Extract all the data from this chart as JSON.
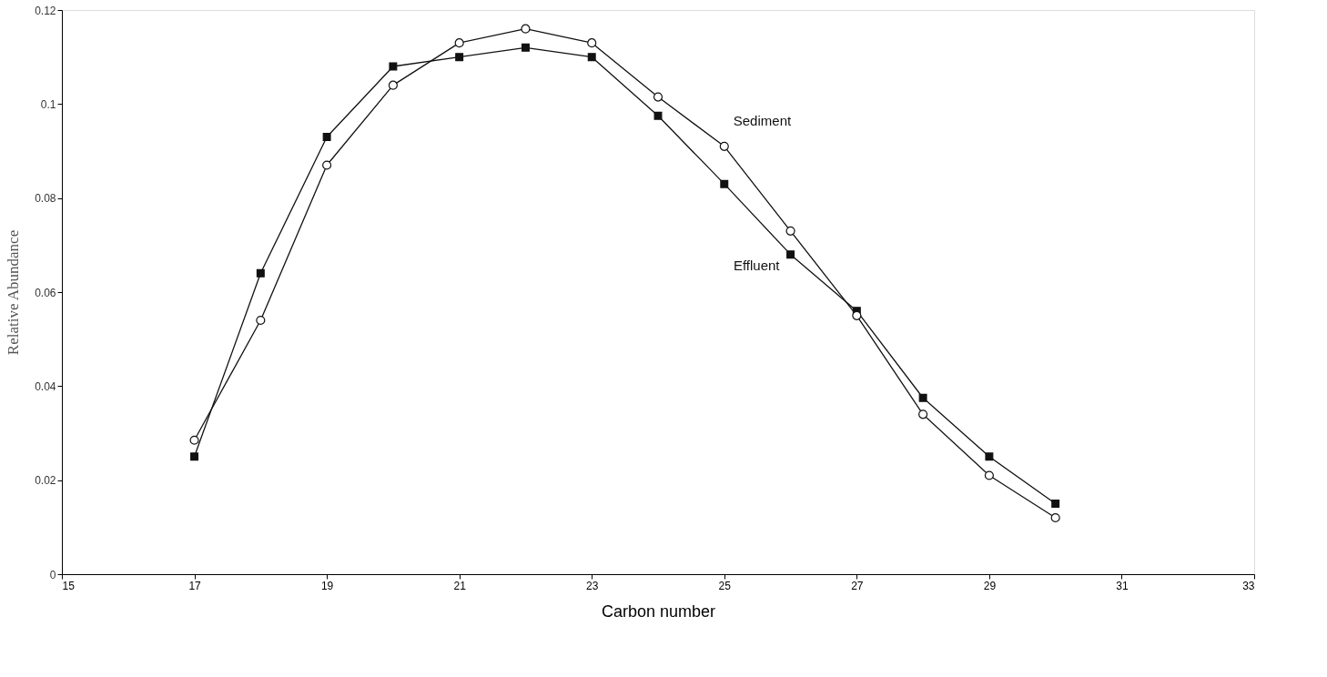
{
  "chart_data": {
    "type": "line",
    "xlabel": "Carbon number",
    "ylabel": "Relative Abundance",
    "x": [
      17,
      18,
      19,
      20,
      21,
      22,
      23,
      24,
      25,
      26,
      27,
      28,
      29,
      30
    ],
    "series": [
      {
        "name": "Effluent",
        "color": "#111111",
        "marker": "square",
        "values": [
          0.025,
          0.064,
          0.093,
          0.108,
          0.11,
          0.112,
          0.11,
          0.0975,
          0.083,
          0.068,
          0.056,
          0.0375,
          0.025,
          0.015
        ]
      },
      {
        "name": "Sediment",
        "color": "#111111",
        "marker": "circle",
        "values": [
          0.0285,
          0.054,
          0.087,
          0.104,
          0.113,
          0.116,
          0.113,
          0.1015,
          0.091,
          0.073,
          0.055,
          0.034,
          0.021,
          0.012
        ]
      }
    ],
    "xlim": [
      15,
      33
    ],
    "xticks": [
      15,
      17,
      19,
      21,
      23,
      25,
      27,
      29,
      31,
      33
    ],
    "ylim": [
      0,
      0.12
    ],
    "yticks": [
      0,
      0.02,
      0.04,
      0.06,
      0.08,
      0.1,
      0.12
    ],
    "grid": false,
    "legend": false,
    "line_style": "solid"
  }
}
